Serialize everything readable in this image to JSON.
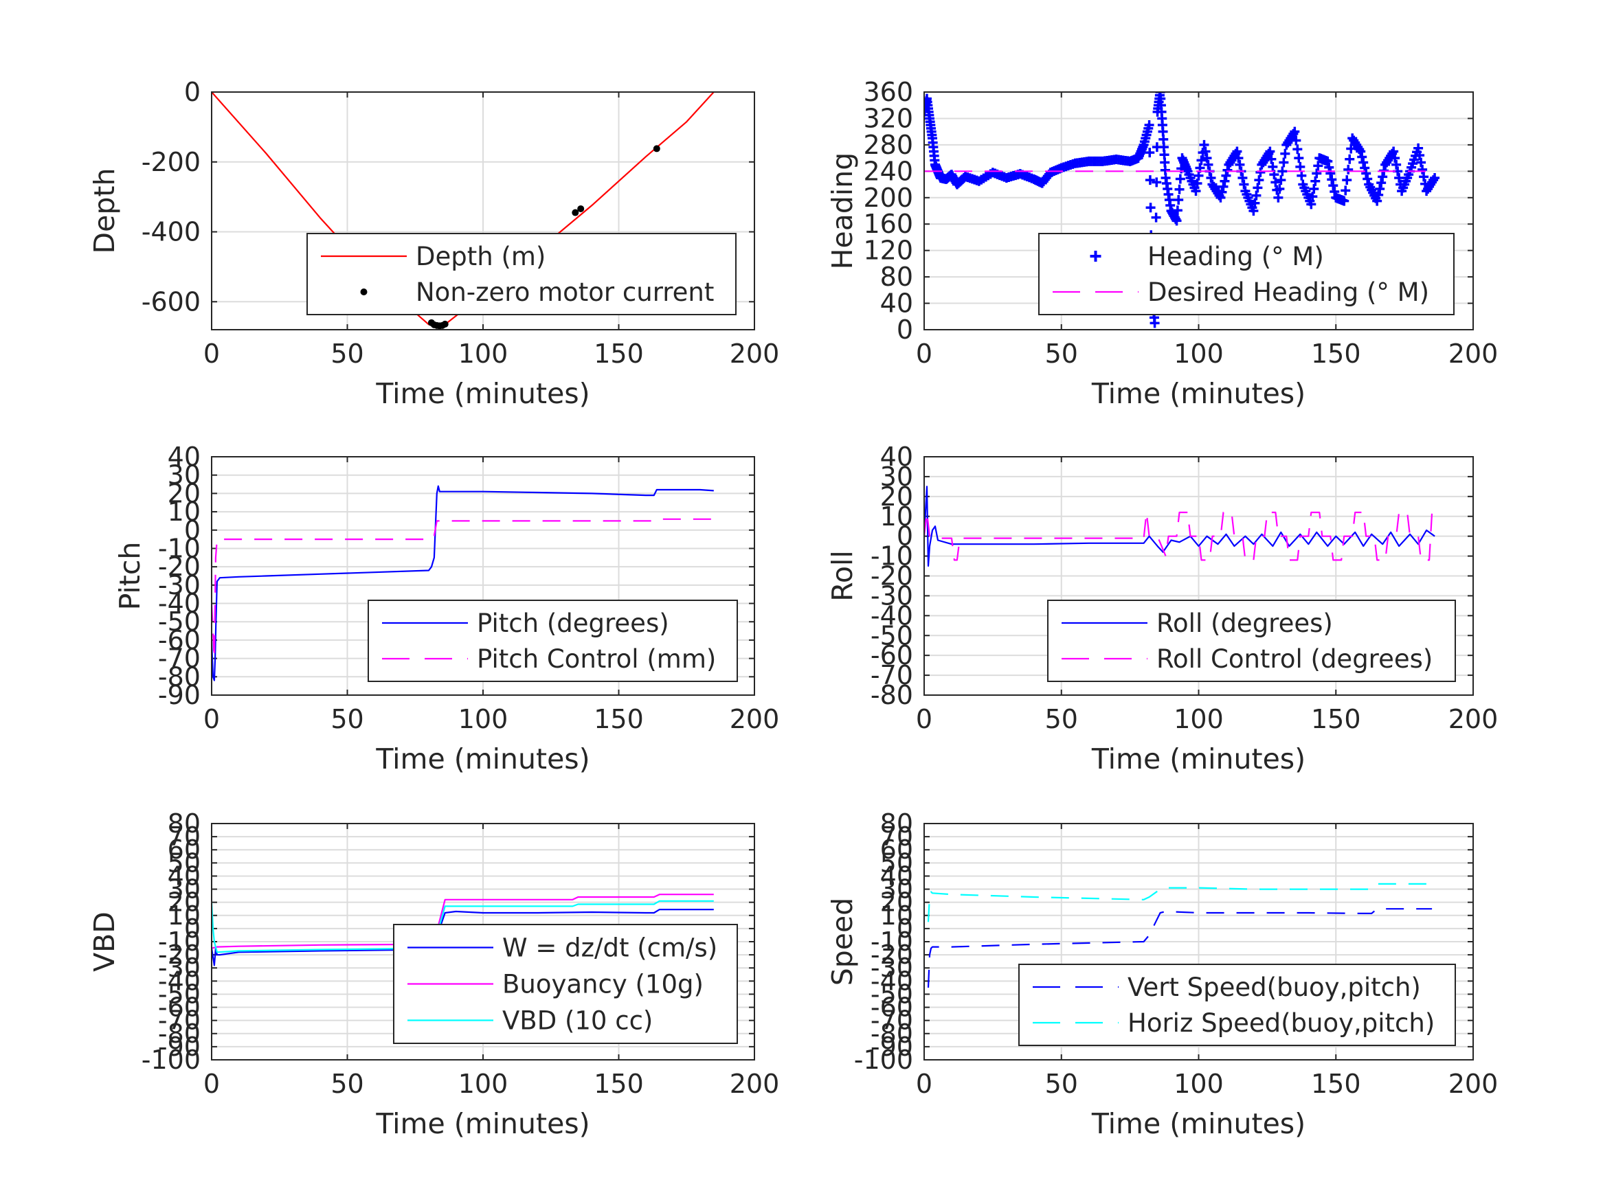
{
  "colors": {
    "blue": "#0000ff",
    "magenta": "#ff00ff",
    "red": "#ff0000",
    "cyan": "#00ffff",
    "black": "#000000",
    "grid": "#dcdcdc",
    "axis": "#262626"
  },
  "chart_data": [
    {
      "id": "depth",
      "type": "line",
      "xlabel": "Time (minutes)",
      "ylabel": "Depth",
      "xlim": [
        0,
        200
      ],
      "ylim": [
        -680,
        0
      ],
      "xticks": [
        "0",
        "50",
        "100",
        "150",
        "200"
      ],
      "yticks": [
        "0",
        "-200",
        "-400",
        "-600"
      ],
      "grid": true,
      "legend_position": "bottom-right",
      "series": [
        {
          "name": "Depth (m)",
          "style": "line",
          "color": "red",
          "x": [
            0,
            20,
            40,
            60,
            80,
            83,
            86,
            100,
            120,
            140,
            160,
            175,
            185
          ],
          "y": [
            0,
            -175,
            -360,
            -530,
            -665,
            -670,
            -665,
            -580,
            -455,
            -325,
            -185,
            -85,
            0
          ]
        },
        {
          "name": "Non-zero motor current",
          "style": "dots",
          "color": "black",
          "x": [
            81,
            82,
            83,
            84,
            85,
            86,
            134,
            136,
            164
          ],
          "y": [
            -660,
            -666,
            -668,
            -669,
            -668,
            -664,
            -345,
            -334,
            -162
          ]
        }
      ]
    },
    {
      "id": "heading",
      "type": "scatter",
      "xlabel": "Time (minutes)",
      "ylabel": "Heading",
      "xlim": [
        0,
        200
      ],
      "ylim": [
        0,
        360
      ],
      "xticks": [
        "0",
        "50",
        "100",
        "150",
        "200"
      ],
      "yticks": [
        "0",
        "40",
        "80",
        "120",
        "160",
        "200",
        "240",
        "280",
        "320",
        "360"
      ],
      "grid": true,
      "legend_position": "bottom-right",
      "series": [
        {
          "name": "Heading (° M)",
          "style": "plus",
          "color": "blue",
          "x": [
            0,
            1,
            2,
            3,
            4,
            5,
            6,
            8,
            10,
            12,
            15,
            20,
            25,
            30,
            35,
            40,
            43,
            46,
            50,
            55,
            60,
            65,
            70,
            75,
            78,
            80,
            82,
            83,
            84,
            85,
            86,
            87,
            88,
            90,
            92,
            94,
            96,
            99,
            102,
            105,
            108,
            111,
            114,
            117,
            120,
            123,
            126,
            129,
            132,
            135,
            138,
            141,
            144,
            147,
            150,
            153,
            156,
            159,
            162,
            165,
            168,
            171,
            174,
            177,
            180,
            183,
            186
          ],
          "y": [
            330,
            350,
            320,
            290,
            250,
            240,
            230,
            228,
            235,
            220,
            232,
            225,
            238,
            230,
            236,
            228,
            222,
            238,
            245,
            252,
            255,
            255,
            258,
            255,
            260,
            280,
            310,
            60,
            10,
            330,
            360,
            300,
            230,
            180,
            165,
            260,
            240,
            210,
            280,
            220,
            200,
            250,
            270,
            210,
            180,
            250,
            270,
            200,
            280,
            300,
            220,
            190,
            260,
            255,
            200,
            195,
            290,
            270,
            220,
            195,
            250,
            270,
            210,
            240,
            275,
            210,
            230
          ]
        },
        {
          "name": "Desired Heading (° M)",
          "style": "dashed",
          "color": "magenta",
          "x": [
            0,
            186
          ],
          "y": [
            240,
            240
          ]
        }
      ]
    },
    {
      "id": "pitch",
      "type": "line",
      "xlabel": "Time (minutes)",
      "ylabel": "Pitch",
      "xlim": [
        0,
        200
      ],
      "ylim": [
        -90,
        40
      ],
      "xticks": [
        "0",
        "50",
        "100",
        "150",
        "200"
      ],
      "yticks": [
        "-90",
        "-80",
        "-70",
        "-60",
        "-50",
        "-40",
        "-30",
        "-20",
        "-10",
        "0",
        "10",
        "20",
        "30",
        "40"
      ],
      "grid": true,
      "legend_position": "bottom-right",
      "series": [
        {
          "name": "Pitch (degrees)",
          "style": "line",
          "color": "blue",
          "x": [
            0,
            0.5,
            1,
            1.3,
            1.6,
            2,
            3,
            10,
            20,
            40,
            60,
            80,
            81,
            82,
            83,
            83.5,
            84,
            85,
            90,
            100,
            120,
            140,
            160,
            163,
            164,
            165,
            170,
            180,
            185
          ],
          "y": [
            -60,
            -80,
            -82,
            -70,
            -50,
            -28,
            -26,
            -25.5,
            -25,
            -24,
            -23,
            -22,
            -20,
            -15,
            20,
            24,
            21,
            21,
            21,
            21,
            20.5,
            20,
            19,
            19,
            22,
            22,
            22,
            22,
            21.5
          ]
        },
        {
          "name": "Pitch Control (mm)",
          "style": "dashed",
          "color": "magenta",
          "x": [
            0,
            1,
            1.5,
            2,
            3,
            80,
            81,
            82,
            83,
            84,
            164,
            165,
            185
          ],
          "y": [
            -40,
            -70,
            -15,
            -5,
            -5,
            -5,
            -3,
            -3,
            5,
            5,
            5,
            6,
            6
          ]
        }
      ]
    },
    {
      "id": "roll",
      "type": "line",
      "xlabel": "Time (minutes)",
      "ylabel": "Roll",
      "xlim": [
        0,
        200
      ],
      "ylim": [
        -80,
        40
      ],
      "xticks": [
        "0",
        "50",
        "100",
        "150",
        "200"
      ],
      "yticks": [
        "-80",
        "-70",
        "-60",
        "-50",
        "-40",
        "-30",
        "-20",
        "-10",
        "0",
        "10",
        "20",
        "30",
        "40"
      ],
      "grid": true,
      "legend_position": "bottom-right",
      "series": [
        {
          "name": "Roll (degrees)",
          "style": "line",
          "color": "blue",
          "x": [
            0,
            1,
            1.5,
            2,
            3,
            4,
            5,
            10,
            20,
            40,
            60,
            80,
            82,
            85,
            87,
            90,
            93,
            97,
            100,
            103,
            107,
            110,
            113,
            117,
            120,
            123,
            127,
            130,
            133,
            137,
            140,
            143,
            147,
            150,
            153,
            157,
            160,
            163,
            167,
            170,
            173,
            177,
            180,
            183,
            186
          ],
          "y": [
            0,
            25,
            -15,
            -5,
            3,
            5,
            -2,
            -4,
            -4,
            -4,
            -3.5,
            -3.5,
            0,
            -5,
            -8,
            -2,
            -3,
            0,
            -5,
            0,
            -4,
            1,
            -5,
            0,
            -4,
            1,
            -5,
            2,
            -5,
            1,
            -4,
            2,
            -5,
            0,
            -4,
            2,
            -5,
            1,
            -4,
            2,
            -5,
            1,
            -4,
            3,
            0
          ]
        },
        {
          "name": "Roll Control (degrees)",
          "style": "dashed",
          "color": "magenta",
          "x": [
            0,
            1,
            2,
            4,
            6,
            10,
            11,
            12,
            13,
            40,
            80,
            81,
            82,
            85,
            88,
            89,
            92,
            93,
            96,
            97,
            100,
            101,
            104,
            105,
            108,
            109,
            112,
            113,
            116,
            117,
            120,
            121,
            124,
            125,
            128,
            129,
            132,
            133,
            136,
            137,
            140,
            141,
            144,
            145,
            148,
            149,
            152,
            153,
            156,
            157,
            160,
            161,
            164,
            165,
            168,
            169,
            172,
            173,
            176,
            177,
            180,
            181,
            184,
            185
          ],
          "y": [
            0,
            12,
            0,
            -1,
            -1,
            -1,
            -12,
            -12,
            -1,
            -1,
            -1,
            12,
            0,
            0,
            -10,
            0,
            0,
            12,
            12,
            0,
            0,
            -12,
            -12,
            0,
            0,
            12,
            12,
            0,
            0,
            -12,
            -12,
            0,
            0,
            12,
            12,
            0,
            0,
            -12,
            -12,
            0,
            0,
            12,
            12,
            0,
            0,
            -12,
            -12,
            0,
            0,
            12,
            12,
            0,
            0,
            -12,
            -12,
            0,
            0,
            12,
            12,
            0,
            0,
            -12,
            -12,
            12
          ]
        }
      ]
    },
    {
      "id": "vbd",
      "type": "line",
      "xlabel": "Time (minutes)",
      "ylabel": "VBD",
      "xlim": [
        0,
        200
      ],
      "ylim": [
        -100,
        80
      ],
      "xticks": [
        "0",
        "50",
        "100",
        "150",
        "200"
      ],
      "yticks": [
        "-100",
        "-90",
        "-80",
        "-70",
        "-60",
        "-50",
        "-40",
        "-30",
        "-20",
        "-10",
        "0",
        "10",
        "20",
        "30",
        "40",
        "50",
        "60",
        "70",
        "80"
      ],
      "grid": true,
      "legend_position": "bottom-right",
      "series": [
        {
          "name": "W = dz/dt (cm/s)",
          "style": "line",
          "color": "blue",
          "x": [
            0,
            1,
            1.5,
            2,
            3,
            10,
            40,
            80,
            82,
            84,
            86,
            90,
            100,
            120,
            140,
            160,
            163,
            165,
            185
          ],
          "y": [
            -15,
            -28,
            -15,
            -20,
            -20,
            -18,
            -17,
            -16,
            -15,
            0,
            12,
            13,
            12,
            12,
            12.5,
            12,
            12,
            14.5,
            14.5
          ]
        },
        {
          "name": "Buoyancy (10g)",
          "style": "line",
          "color": "magenta",
          "x": [
            0,
            2,
            10,
            40,
            80,
            82,
            86,
            100,
            133,
            135,
            163,
            165,
            185
          ],
          "y": [
            -15,
            -14,
            -13.5,
            -12.5,
            -12,
            -10,
            22,
            22,
            22,
            24,
            24,
            26,
            26
          ]
        },
        {
          "name": "VBD (10 cc)",
          "style": "line",
          "color": "cyan",
          "x": [
            0,
            0.5,
            1,
            2,
            10,
            40,
            80,
            82,
            86,
            100,
            133,
            135,
            163,
            165,
            185
          ],
          "y": [
            20,
            0,
            -10,
            -18,
            -17,
            -16,
            -15,
            -12,
            17,
            17,
            17,
            18.5,
            18.5,
            21,
            21
          ]
        }
      ]
    },
    {
      "id": "speed",
      "type": "line",
      "xlabel": "Time (minutes)",
      "ylabel": "Speed",
      "xlim": [
        0,
        200
      ],
      "ylim": [
        -100,
        80
      ],
      "xticks": [
        "0",
        "50",
        "100",
        "150",
        "200"
      ],
      "yticks": [
        "-100",
        "-90",
        "-80",
        "-70",
        "-60",
        "-50",
        "-40",
        "-30",
        "-20",
        "-10",
        "0",
        "10",
        "20",
        "30",
        "40",
        "50",
        "60",
        "70",
        "80"
      ],
      "grid": true,
      "legend_position": "bottom-right",
      "series": [
        {
          "name": "Vert Speed(buoy,pitch)",
          "style": "dashed",
          "color": "blue",
          "x": [
            1.5,
            2,
            2.5,
            3,
            10,
            40,
            80,
            82,
            86,
            88,
            100,
            120,
            140,
            160,
            163,
            165,
            185
          ],
          "y": [
            -45,
            -20,
            -15,
            -14,
            -14,
            -12,
            -10,
            -5,
            12,
            13,
            12,
            12,
            12,
            11.5,
            11.5,
            15,
            15
          ]
        },
        {
          "name": "Horiz Speed(buoy,pitch)",
          "style": "dashed",
          "color": "cyan",
          "x": [
            1.5,
            2,
            2.5,
            3,
            10,
            40,
            80,
            82,
            86,
            88,
            100,
            120,
            140,
            160,
            163,
            165,
            185
          ],
          "y": [
            5,
            25,
            28,
            27,
            26,
            24,
            22,
            24,
            30,
            31,
            31,
            30,
            30,
            30,
            30,
            34,
            34
          ]
        }
      ]
    }
  ]
}
